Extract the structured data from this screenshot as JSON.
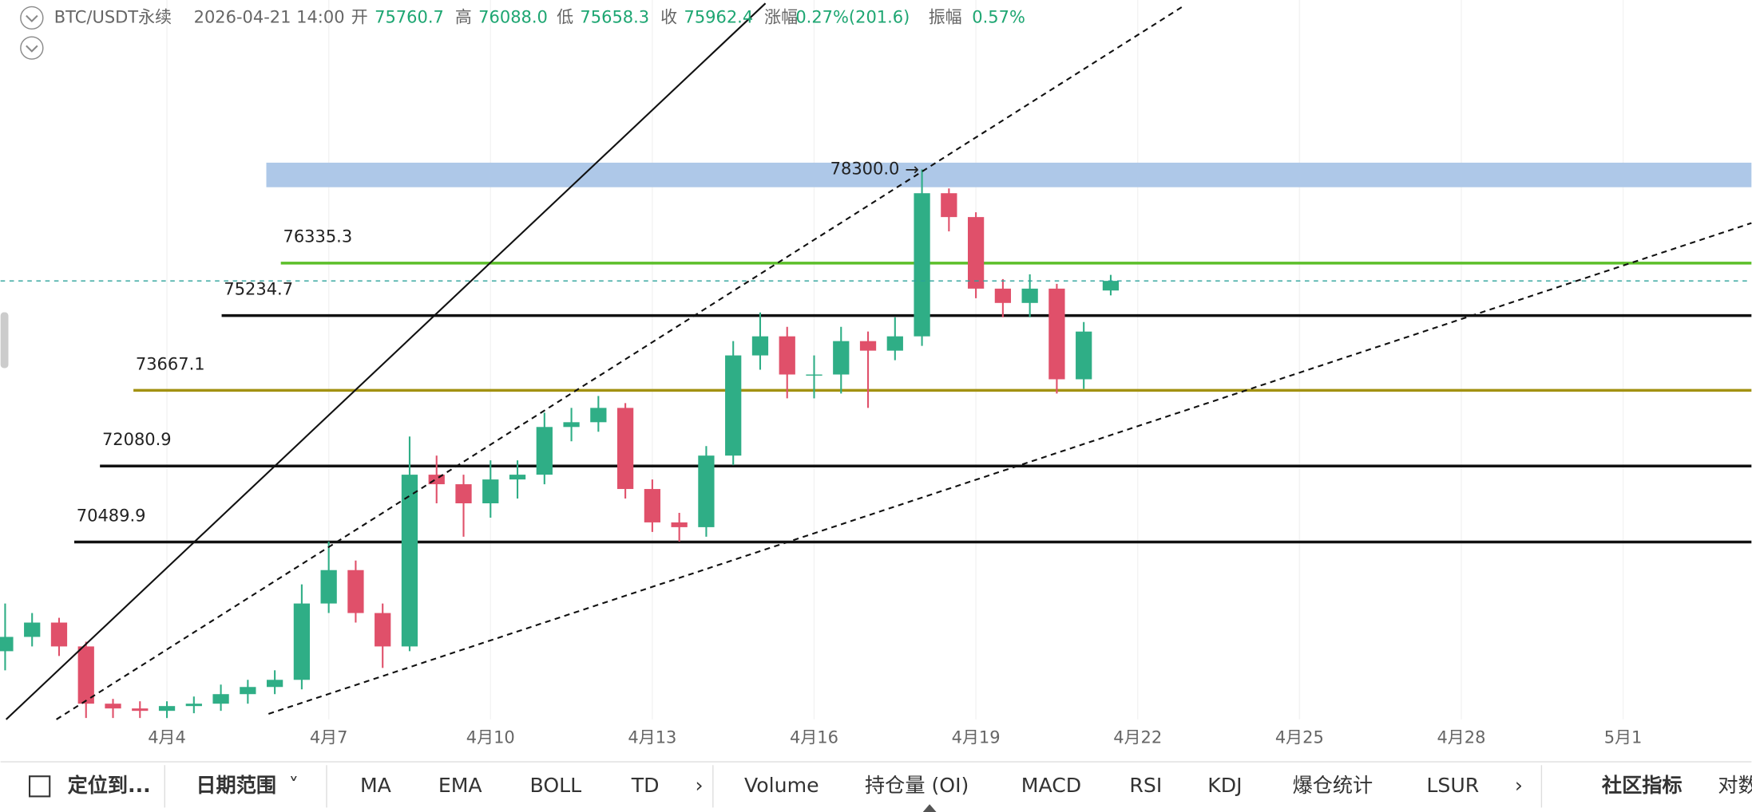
{
  "header": {
    "symbol": "BTC/USDT永续",
    "time": "2026-04-21 14:00",
    "fields": [
      {
        "label": "开",
        "value": "75760.7"
      },
      {
        "label": "高",
        "value": "76088.0"
      },
      {
        "label": "低",
        "value": "75658.3"
      },
      {
        "label": "收",
        "value": "75962.4"
      },
      {
        "label": "涨幅",
        "value": "0.27%(201.6)"
      },
      {
        "label": "振幅",
        "value": "0.57%"
      }
    ]
  },
  "toolbar": {
    "items": [
      "定位到...",
      "日期范围",
      "MA",
      "EMA",
      "BOLL",
      "TD",
      "Volume",
      "持仓量 (OI)",
      "MACD",
      "RSI",
      "KDJ",
      "爆仓统计",
      "LSUR",
      "社区指标",
      "对数"
    ]
  },
  "chart_data": {
    "type": "candlestick",
    "up_color": "#2fae86",
    "down_color": "#e0506a",
    "x": [
      1,
      1.5,
      2,
      2.5,
      3,
      3.5,
      4,
      4.5,
      5,
      5.5,
      6,
      6.5,
      7,
      7.5,
      8,
      8.5,
      9,
      9.5,
      10,
      10.5,
      11,
      11.5,
      12,
      12.5,
      13,
      13.5,
      14,
      14.5,
      15,
      15.5,
      16,
      16.5,
      17,
      17.5,
      18,
      18.5,
      19,
      19.5,
      20,
      20.5,
      21,
      21.5
    ],
    "open": [
      68200,
      68500,
      68800,
      68300,
      67100,
      67000,
      66950,
      67050,
      67100,
      67300,
      67450,
      67600,
      69200,
      69900,
      69000,
      68300,
      71900,
      71700,
      71300,
      71800,
      71900,
      72900,
      73000,
      73300,
      71600,
      70900,
      70800,
      72300,
      74400,
      74800,
      74000,
      74000,
      74700,
      74500,
      74800,
      77800,
      77300,
      75800,
      75500,
      75800,
      73900,
      75760.7
    ],
    "high": [
      69200,
      69000,
      68900,
      68400,
      67200,
      67150,
      67150,
      67250,
      67500,
      67600,
      67800,
      69600,
      70500,
      70100,
      69200,
      72700,
      72300,
      71900,
      72200,
      72200,
      73200,
      73300,
      73550,
      73400,
      71800,
      71100,
      72500,
      74700,
      75300,
      75000,
      74400,
      75000,
      74900,
      75200,
      78300,
      77900,
      77400,
      76000,
      76100,
      75900,
      75100,
      76088.0
    ],
    "low": [
      67800,
      68300,
      68100,
      66800,
      66800,
      66800,
      66800,
      66900,
      66950,
      67100,
      67300,
      67400,
      69000,
      68800,
      67850,
      68200,
      71300,
      70600,
      71000,
      71400,
      71700,
      72600,
      72800,
      71400,
      70700,
      70500,
      70600,
      72100,
      74100,
      73500,
      73500,
      73600,
      73300,
      74300,
      74600,
      77000,
      75600,
      75200,
      75200,
      73600,
      73700,
      75658.3
    ],
    "close": [
      68500,
      68800,
      68300,
      67100,
      67000,
      66950,
      67050,
      67100,
      67300,
      67450,
      67600,
      69200,
      69900,
      69000,
      68300,
      71900,
      71700,
      71300,
      71800,
      71900,
      72900,
      73000,
      73300,
      71600,
      70900,
      70800,
      72300,
      74400,
      74800,
      74000,
      74000,
      74700,
      74500,
      74800,
      77800,
      77300,
      75800,
      75500,
      75800,
      73900,
      74900,
      75962.4
    ],
    "xlim": [
      0.915,
      33.38
    ],
    "ylim": [
      66770,
      81850
    ],
    "xticks": [
      {
        "value": 4,
        "label": "4月4"
      },
      {
        "value": 7,
        "label": "4月7"
      },
      {
        "value": 10,
        "label": "4月10"
      },
      {
        "value": 13,
        "label": "4月13"
      },
      {
        "value": 16,
        "label": "4月16"
      },
      {
        "value": 19,
        "label": "4月19"
      },
      {
        "value": 22,
        "label": "4月22"
      },
      {
        "value": 25,
        "label": "4月25"
      },
      {
        "value": 28,
        "label": "4月28"
      },
      {
        "value": 31,
        "label": "5月1"
      }
    ],
    "zone": {
      "value": 78300,
      "label": "78300.0",
      "color": "#aec8e8"
    },
    "levels": [
      {
        "value": 76335.3,
        "color": "#5cbf2a"
      },
      {
        "value": 75234.7,
        "color": "#111111"
      },
      {
        "value": 73667.1,
        "color": "#a39212"
      },
      {
        "value": 72080.9,
        "color": "#111111"
      },
      {
        "value": 70489.9,
        "color": "#111111"
      }
    ]
  }
}
